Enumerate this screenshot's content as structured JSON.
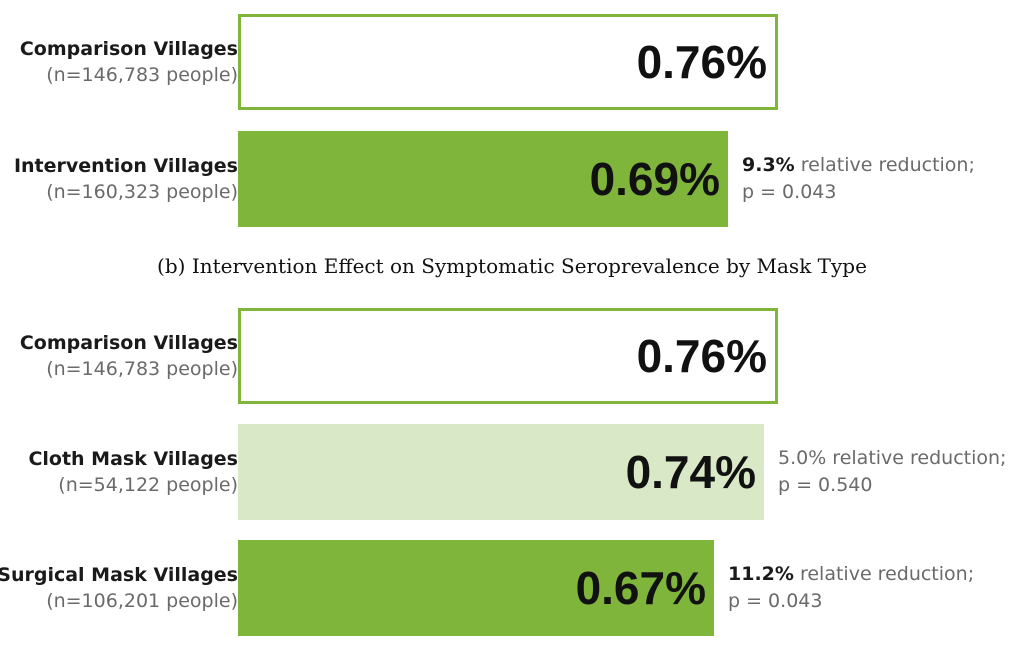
{
  "chart_data": [
    {
      "type": "bar",
      "orientation": "horizontal",
      "caption": "",
      "categories": [
        "Comparison Villages",
        "Intervention Villages"
      ],
      "values": [
        0.76,
        0.69
      ],
      "value_labels": [
        "0.76%",
        "0.69%"
      ],
      "sample_sizes": [
        "(n=146,783 people)",
        "(n=160,323 people)"
      ],
      "annotations": [
        null,
        {
          "bold": "9.3%",
          "text": " relative reduction;",
          "p": "p =  0.043"
        }
      ],
      "colors": [
        "#ffffff",
        "#7fb53a"
      ],
      "border_color": "#7fb53a"
    },
    {
      "type": "bar",
      "orientation": "horizontal",
      "caption": "(b) Intervention Effect on Symptomatic Seroprevalence by Mask Type",
      "categories": [
        "Comparison Villages",
        "Cloth Mask Villages",
        "Surgical Mask Villages"
      ],
      "values": [
        0.76,
        0.74,
        0.67
      ],
      "value_labels": [
        "0.76%",
        "0.74%",
        "0.67%"
      ],
      "sample_sizes": [
        "(n=146,783 people)",
        "(n=54,122 people)",
        "(n=106,201 people)"
      ],
      "annotations": [
        null,
        {
          "bold": "",
          "text": "5.0% relative reduction;",
          "p": "p =  0.540"
        },
        {
          "bold": "11.2%",
          "text": " relative reduction;",
          "p": "p = 0.043"
        }
      ],
      "colors": [
        "#ffffff",
        "#d9e8c6",
        "#7fb53a"
      ],
      "border_color": "#7fb53a"
    }
  ]
}
